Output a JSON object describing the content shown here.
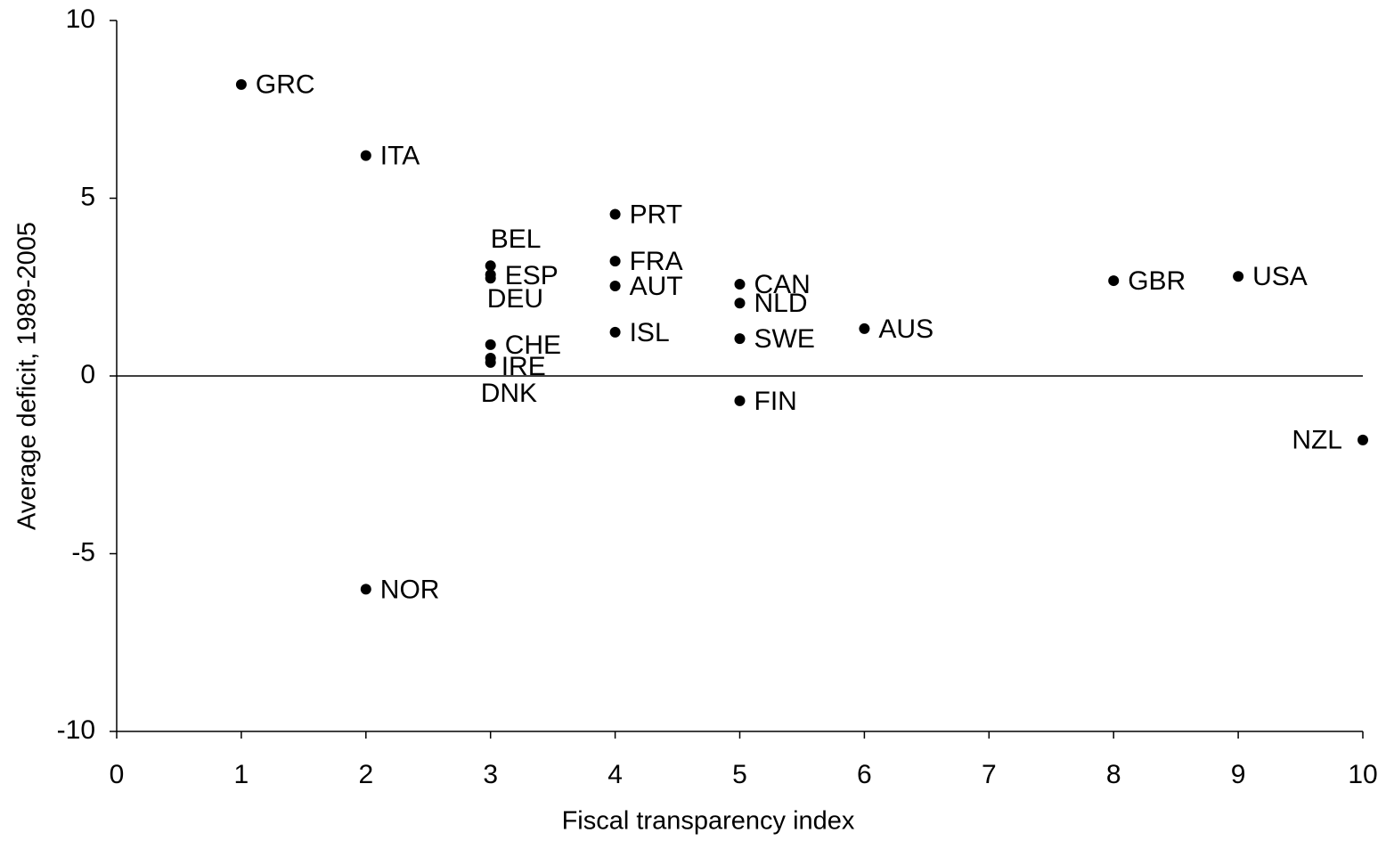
{
  "chart_data": {
    "type": "scatter",
    "xlabel": "Fiscal transparency index",
    "ylabel": "Average deficit, 1989-2005",
    "xlim": [
      0,
      10
    ],
    "xticks": [
      0,
      1,
      2,
      3,
      4,
      5,
      6,
      7,
      8,
      9,
      10
    ],
    "ylim": [
      -10,
      10
    ],
    "yticks": [
      -10,
      -5,
      0,
      5,
      10
    ],
    "color": "#000000",
    "points": [
      {
        "label": "GRC",
        "x": 1,
        "y": 8.2
      },
      {
        "label": "ITA",
        "x": 2,
        "y": 6.2
      },
      {
        "label": "PRT",
        "x": 4,
        "y": 4.55
      },
      {
        "label": "BEL",
        "x": 3,
        "y": 3.1
      },
      {
        "label": "ESP",
        "x": 3,
        "y": 2.85
      },
      {
        "label": "DEU",
        "x": 3,
        "y": 2.75
      },
      {
        "label": "FRA",
        "x": 4,
        "y": 3.23
      },
      {
        "label": "AUT",
        "x": 4,
        "y": 2.53
      },
      {
        "label": "ISL",
        "x": 4,
        "y": 1.23
      },
      {
        "label": "CHE",
        "x": 3,
        "y": 0.88
      },
      {
        "label": "IRE",
        "x": 3,
        "y": 0.5
      },
      {
        "label": "DNK",
        "x": 3,
        "y": 0.38
      },
      {
        "label": "CAN",
        "x": 5,
        "y": 2.58
      },
      {
        "label": "NLD",
        "x": 5,
        "y": 2.05
      },
      {
        "label": "SWE",
        "x": 5,
        "y": 1.05
      },
      {
        "label": "FIN",
        "x": 5,
        "y": -0.7
      },
      {
        "label": "AUS",
        "x": 6,
        "y": 1.33
      },
      {
        "label": "GBR",
        "x": 8,
        "y": 2.68
      },
      {
        "label": "USA",
        "x": 9,
        "y": 2.8
      },
      {
        "label": "NZL",
        "x": 10,
        "y": -1.8
      },
      {
        "label": "NOR",
        "x": 2,
        "y": -6.0
      }
    ]
  }
}
